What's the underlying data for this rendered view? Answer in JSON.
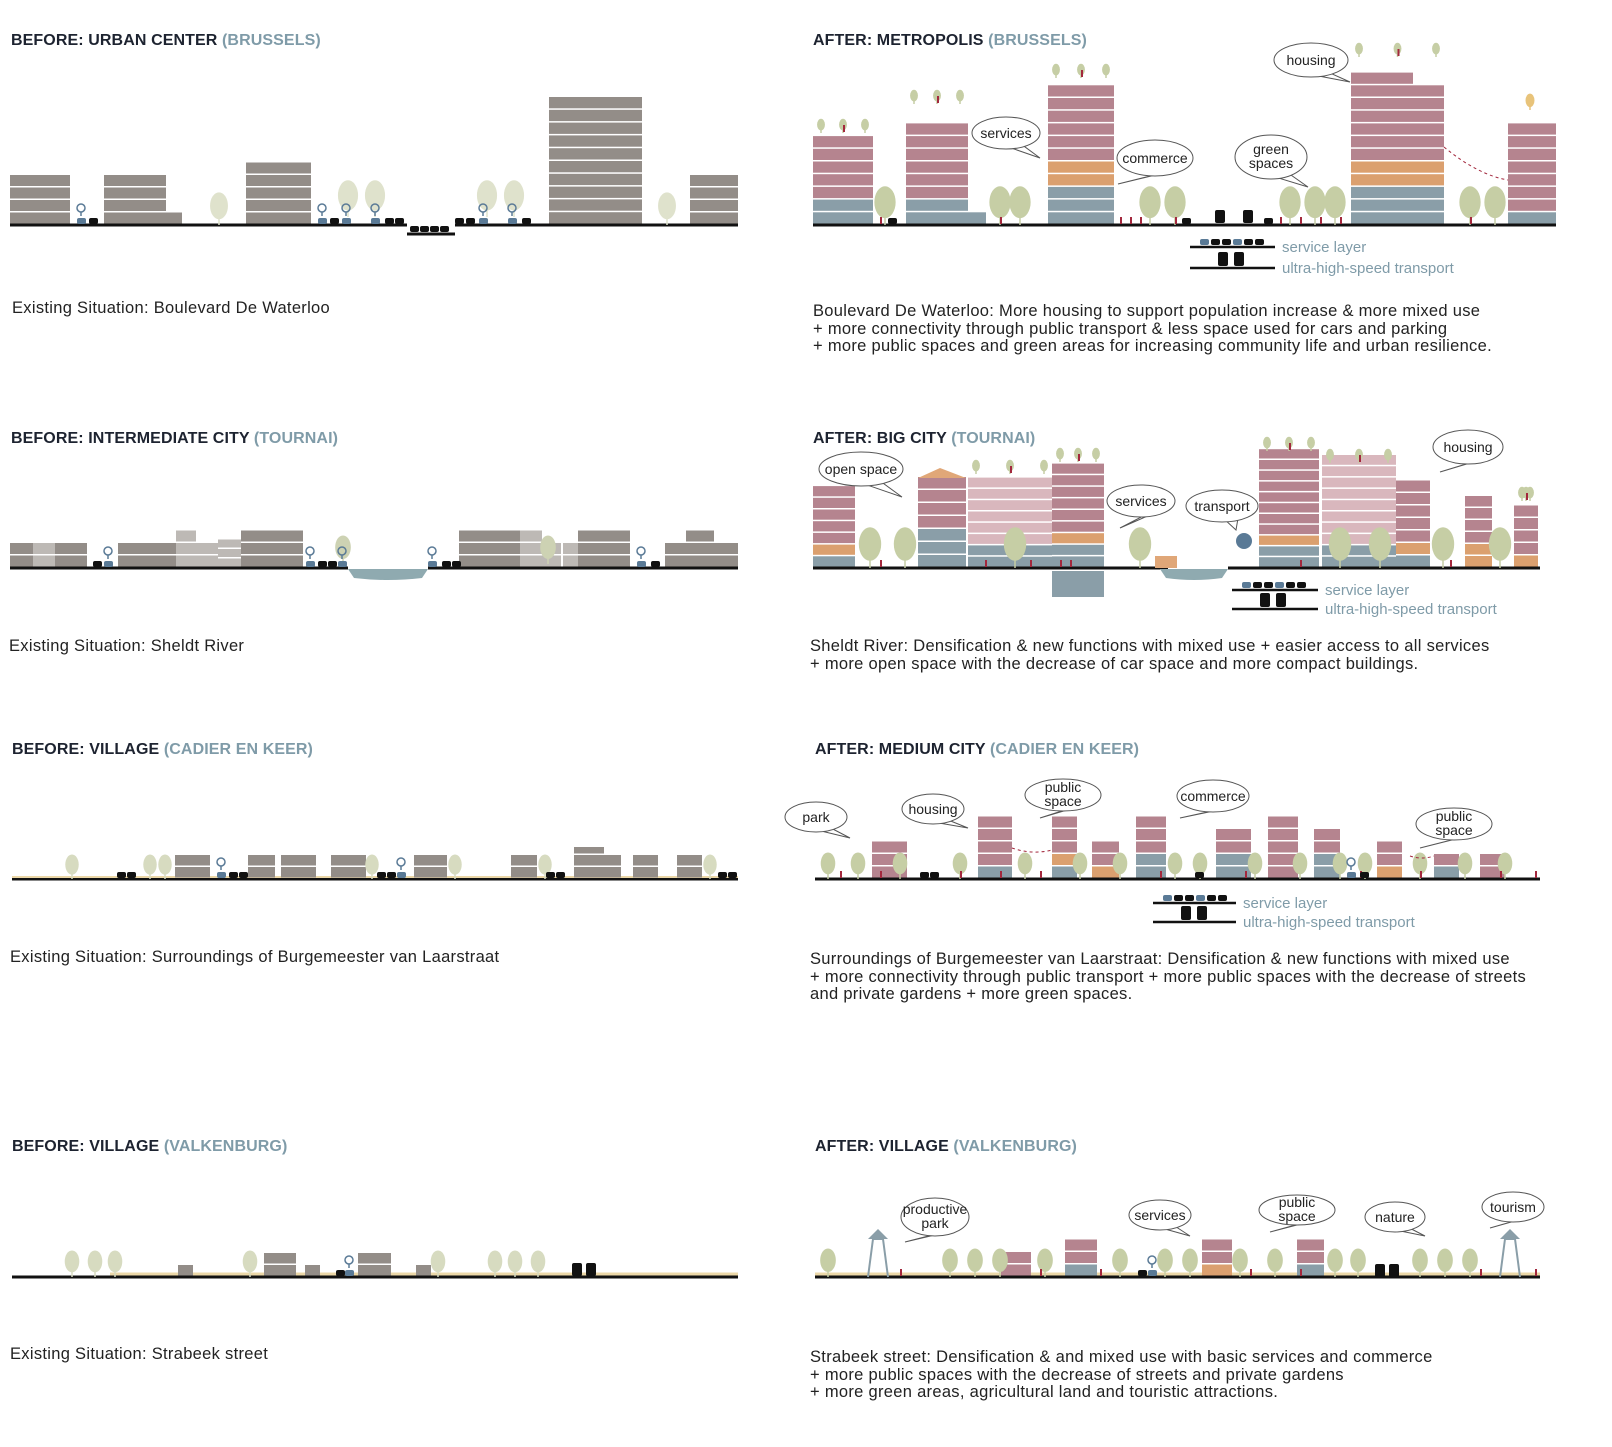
{
  "panels": [
    {
      "id": "before-brussels",
      "title_main": "BEFORE: URBAN CENTER",
      "title_place": "(BRUSSELS)",
      "caption": [
        "Existing Situation: Boulevard De Waterloo"
      ]
    },
    {
      "id": "after-brussels",
      "title_main": "AFTER: METROPOLIS",
      "title_place": "(BRUSSELS)",
      "caption": [
        "Boulevard De Waterloo: More housing to support population increase & more mixed use",
        "+ more connectivity through public transport & less space used for cars and parking",
        "+ more public spaces and green areas for increasing community life and urban resilience."
      ],
      "bubbles": [
        "services",
        "commerce",
        "green spaces",
        "housing"
      ],
      "legend": [
        "service layer",
        "ultra-high-speed transport"
      ]
    },
    {
      "id": "before-tournai",
      "title_main": "BEFORE: INTERMEDIATE CITY",
      "title_place": "(TOURNAI)",
      "caption": [
        "Existing Situation: Sheldt River"
      ]
    },
    {
      "id": "after-tournai",
      "title_main": "AFTER: BIG CITY",
      "title_place": "(TOURNAI)",
      "caption": [
        "Sheldt River: Densification & new functions with mixed use + easier access to all services",
        "+ more open space with the decrease of car space and more compact buildings."
      ],
      "bubbles": [
        "open space",
        "services",
        "transport",
        "housing"
      ],
      "legend": [
        "service layer",
        "ultra-high-speed transport"
      ]
    },
    {
      "id": "before-cadier",
      "title_main": "BEFORE: VILLAGE",
      "title_place": "(CADIER EN KEER)",
      "caption": [
        "Existing Situation: Surroundings of Burgemeester van Laarstraat"
      ]
    },
    {
      "id": "after-cadier",
      "title_main": "AFTER: MEDIUM CITY",
      "title_place": "(CADIER EN KEER)",
      "caption": [
        "Surroundings of Burgemeester van Laarstraat: Densification & new functions with mixed use",
        "+ more connectivity through public transport + more public spaces with the decrease of streets",
        "and private gardens + more green spaces."
      ],
      "bubbles": [
        "park",
        "housing",
        "public space",
        "commerce",
        "public space"
      ],
      "legend": [
        "service layer",
        "ultra-high-speed transport"
      ]
    },
    {
      "id": "before-valkenburg",
      "title_main": "BEFORE: VILLAGE",
      "title_place": "(VALKENBURG)",
      "caption": [
        "Existing Situation: Strabeek street"
      ]
    },
    {
      "id": "after-valkenburg",
      "title_main": "AFTER: VILLAGE",
      "title_place": "(VALKENBURG)",
      "caption": [
        "Strabeek street: Densification & and mixed use with basic services and commerce",
        "+ more public spaces with the decrease of streets and private gardens",
        "+ more green areas, agricultural land and touristic attractions."
      ],
      "bubbles": [
        "productive park",
        "services",
        "public space",
        "nature",
        "tourism"
      ]
    }
  ],
  "colors": {
    "existing": "#938d88",
    "existing_light": "#bdb9b5",
    "housing": "#b5848f",
    "housing_light": "#d9b7bd",
    "commerce": "#dba06f",
    "services": "#8a9ea8",
    "tree": "#c6cea5",
    "water": "#8faab0",
    "accent": "#7f9ba8",
    "person": "#a3283d"
  }
}
